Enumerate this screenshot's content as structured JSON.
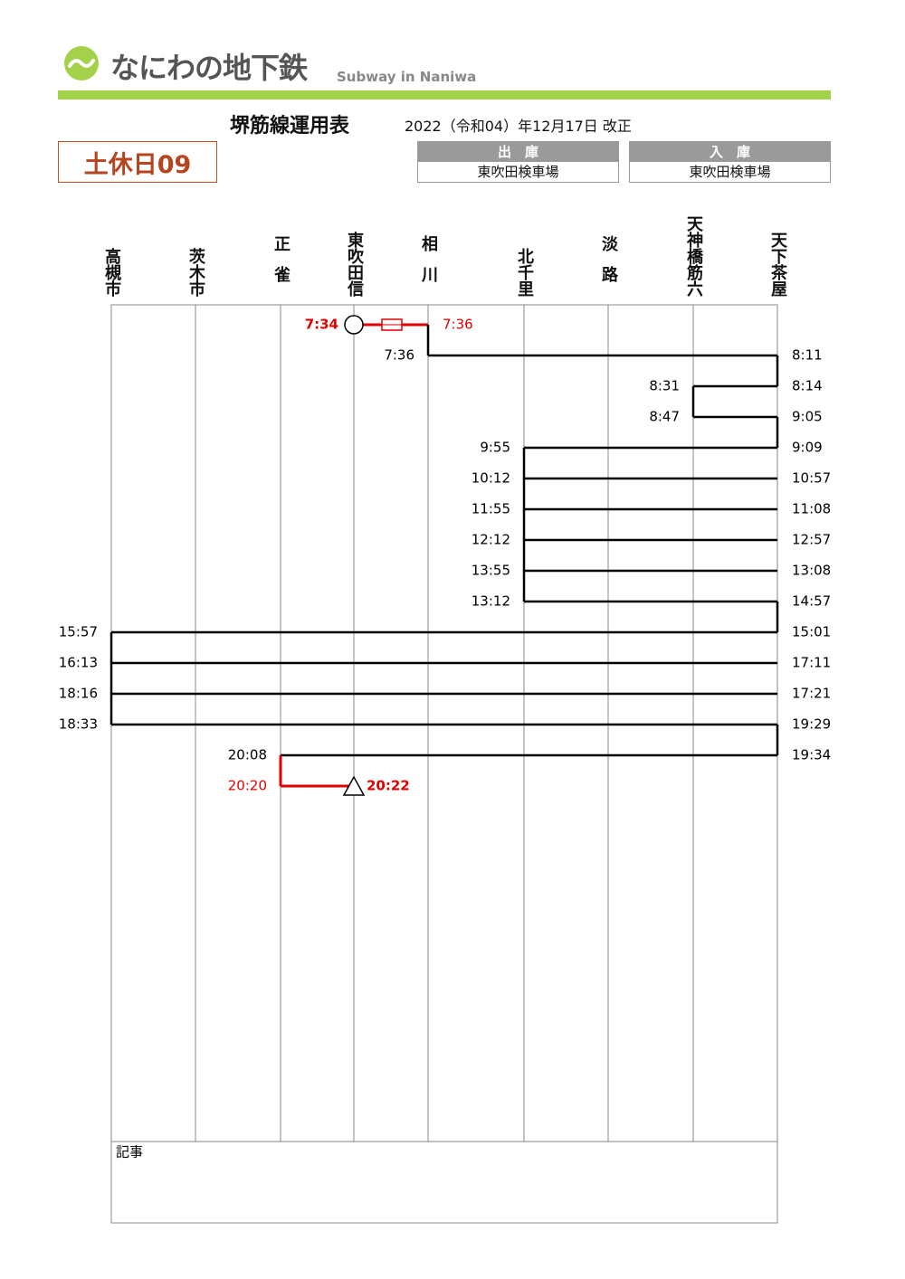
{
  "header": {
    "logo": "なにわの地下鉄",
    "subtitle": "Subway in Naniwa"
  },
  "title": "堺筋線運用表",
  "revision": "2022（令和04）年12月17日 改正",
  "badge": "土休日09",
  "depots": [
    {
      "label": "出　庫",
      "value": "東吹田検車場"
    },
    {
      "label": "入　庫",
      "value": "東吹田検車場"
    }
  ],
  "stations": [
    "高槻市",
    "茨木市",
    "正雀",
    "東吹田信",
    "相川",
    "北千里",
    "淡路",
    "天神橋筋六",
    "天下茶屋"
  ],
  "rows": [
    [
      null,
      null,
      null,
      "7:34",
      "7:36",
      null,
      null,
      null,
      null
    ],
    [
      null,
      null,
      null,
      null,
      "7:36",
      null,
      null,
      null,
      "8:11"
    ],
    [
      null,
      null,
      null,
      null,
      null,
      null,
      null,
      "8:31",
      "8:14"
    ],
    [
      null,
      null,
      null,
      null,
      null,
      null,
      null,
      "8:47",
      "9:05"
    ],
    [
      null,
      null,
      null,
      null,
      null,
      "9:55",
      null,
      null,
      "9:09"
    ],
    [
      null,
      null,
      null,
      null,
      null,
      "10:12",
      null,
      null,
      "10:57"
    ],
    [
      null,
      null,
      null,
      null,
      null,
      "11:55",
      null,
      null,
      "11:08"
    ],
    [
      null,
      null,
      null,
      null,
      null,
      "12:12",
      null,
      null,
      "12:57"
    ],
    [
      null,
      null,
      null,
      null,
      null,
      "13:55",
      null,
      null,
      "13:08"
    ],
    [
      null,
      null,
      null,
      null,
      null,
      "13:12",
      null,
      null,
      "14:57"
    ],
    [
      "15:57",
      null,
      null,
      null,
      null,
      null,
      null,
      null,
      "15:01"
    ],
    [
      "16:13",
      null,
      null,
      null,
      null,
      null,
      null,
      null,
      "17:11"
    ],
    [
      "18:16",
      null,
      null,
      null,
      null,
      null,
      null,
      null,
      "17:21"
    ],
    [
      "18:33",
      null,
      null,
      null,
      null,
      null,
      null,
      null,
      "19:29"
    ],
    [
      null,
      null,
      "20:08",
      null,
      null,
      null,
      null,
      null,
      "19:34"
    ],
    [
      null,
      null,
      "20:20",
      "20:22",
      null,
      null,
      null,
      null,
      null
    ]
  ],
  "memo_label": "記事"
}
